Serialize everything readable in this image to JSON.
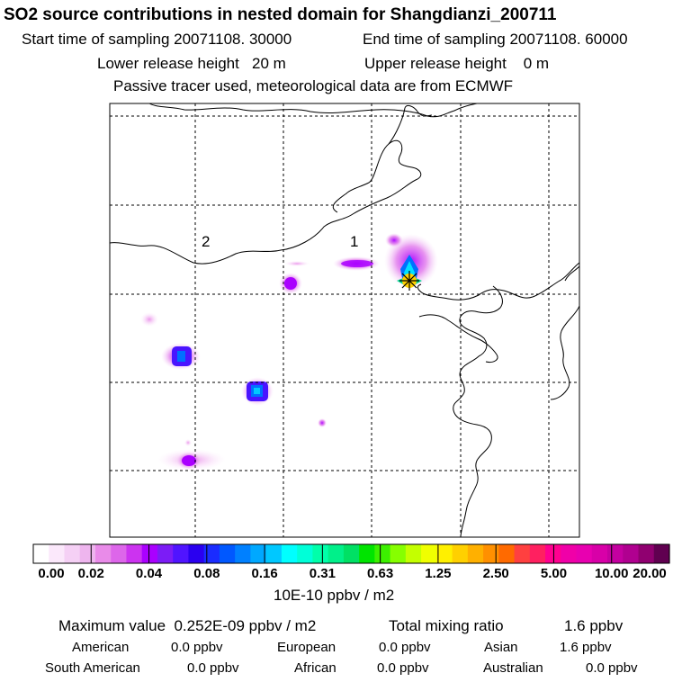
{
  "header": {
    "title": "SO2 source contributions in nested domain for Shangdianzi_200711",
    "start_label": "Start time of sampling 20071108. 30000",
    "end_label": "End time of sampling 20071108. 60000",
    "lower_height_label": "Lower release height   20 m",
    "upper_height_label": "Upper release height    0 m",
    "tracer_note": "Passive tracer used, meteorological data are from ECMWF"
  },
  "chart_data": {
    "type": "heatmap",
    "title": "SO2 source contributions in nested domain for Shangdianzi_200711",
    "map_labels": [
      "1",
      "2"
    ],
    "receptor_marker": "Shangdianzi",
    "grid": true,
    "colorbar": {
      "ticks": [
        "0.00",
        "0.02",
        "0.04",
        "0.08",
        "0.16",
        "0.31",
        "0.63",
        "1.25",
        "2.50",
        "5.00",
        "10.00",
        "20.00"
      ],
      "units": "10E-10 ppbv / m2",
      "colors": [
        "#ffffff",
        "#fbe8fb",
        "#f5d0f5",
        "#eeb5ee",
        "#e98be9",
        "#dd66ea",
        "#cc33f0",
        "#aa00ff",
        "#7c1cf6",
        "#5014ff",
        "#2a00f0",
        "#1a2cff",
        "#0058ff",
        "#0080ff",
        "#00a8ff",
        "#00c8ff",
        "#00ffff",
        "#00ffd8",
        "#00ffaa",
        "#00f08a",
        "#00e064",
        "#00e400",
        "#3cf000",
        "#86ff00",
        "#c4ff00",
        "#f0ff00",
        "#fff000",
        "#ffd000",
        "#ffb000",
        "#ff9000",
        "#ff6a00",
        "#ff4040",
        "#ff2060",
        "#ff0090",
        "#f000a8",
        "#e800b0",
        "#d800a8",
        "#c400a0",
        "#b00090",
        "#900070",
        "#600050"
      ]
    },
    "sources": [
      {
        "name": "Shangdianzi receptor plume",
        "lon_index": 0.63,
        "lat_index": 0.34,
        "level": "0.63"
      },
      {
        "name": "plume near label 1",
        "level": "0.04"
      },
      {
        "name": "source west of label 1",
        "level": "0.04"
      },
      {
        "name": "source west-central",
        "level": "0.08"
      },
      {
        "name": "source central-south",
        "level": "0.16"
      },
      {
        "name": "source south-west",
        "level": "0.04"
      },
      {
        "name": "small source",
        "level": "0.02"
      },
      {
        "name": "weak source far west",
        "level": "0.02"
      }
    ]
  },
  "summary": {
    "max_value": "Maximum value  0.252E-09 ppbv / m2",
    "total_label": "Total mixing ratio",
    "total_value": "1.6 ppbv"
  },
  "regions": [
    {
      "name": "American",
      "value": "0.0 ppbv"
    },
    {
      "name": "European",
      "value": "0.0 ppbv"
    },
    {
      "name": "Asian",
      "value": "1.6 ppbv"
    },
    {
      "name": "South American",
      "value": "0.0 ppbv"
    },
    {
      "name": "African",
      "value": "0.0 ppbv"
    },
    {
      "name": "Australian",
      "value": "0.0 ppbv"
    }
  ]
}
